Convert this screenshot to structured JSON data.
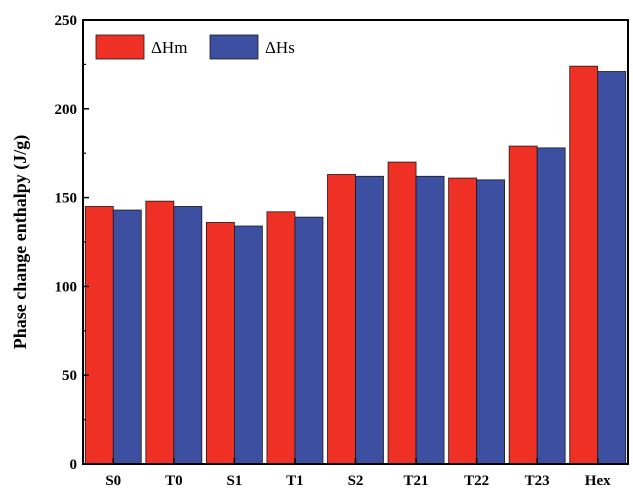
{
  "chart_data": {
    "type": "bar",
    "categories": [
      "S0",
      "T0",
      "S1",
      "T1",
      "S2",
      "T21",
      "T22",
      "T23",
      "Hex"
    ],
    "series": [
      {
        "name": "ΔHm",
        "color": "#ee3124",
        "values": [
          145,
          148,
          136,
          142,
          163,
          170,
          161,
          179,
          224
        ]
      },
      {
        "name": "ΔHs",
        "color": "#3d4fa1",
        "values": [
          143,
          145,
          134,
          139,
          162,
          162,
          160,
          178,
          221
        ]
      }
    ],
    "title": "",
    "xlabel": "",
    "ylabel": "Phase change enthalpy (J/g)",
    "ylim": [
      0,
      250
    ],
    "yticks": [
      "0",
      "50",
      "100",
      "150",
      "200",
      "250"
    ],
    "grid": false,
    "legend_position": "top-left"
  }
}
